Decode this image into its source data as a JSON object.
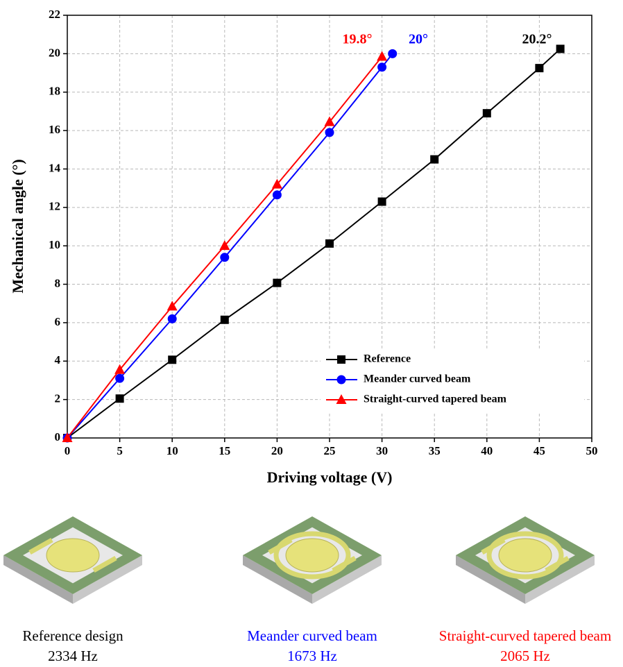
{
  "chart_data": {
    "type": "line",
    "xlabel": "Driving voltage (V)",
    "ylabel": "Mechanical angle (°)",
    "xlim": [
      0,
      50
    ],
    "xticks": [
      0,
      5,
      10,
      15,
      20,
      25,
      30,
      35,
      40,
      45,
      50
    ],
    "ylim": [
      0,
      22
    ],
    "yticks": [
      0,
      2,
      4,
      6,
      8,
      10,
      12,
      14,
      16,
      18,
      20,
      22
    ],
    "grid": true,
    "legend": "lower right",
    "series": [
      {
        "name": "Reference",
        "color": "#000000",
        "marker": "square",
        "x": [
          0,
          5,
          10,
          15,
          20,
          25,
          30,
          35,
          40,
          45,
          47
        ],
        "values": [
          0,
          2.05,
          4.07,
          6.15,
          8.07,
          10.12,
          12.3,
          14.5,
          16.9,
          19.25,
          20.25
        ]
      },
      {
        "name": "Meander curved beam",
        "color": "#0000ff",
        "marker": "circle",
        "x": [
          0,
          5,
          10,
          15,
          20,
          25,
          30,
          31
        ],
        "values": [
          0,
          3.1,
          6.2,
          9.4,
          12.65,
          15.9,
          19.3,
          20.0
        ]
      },
      {
        "name": "Straight-curved tapered beam",
        "color": "#ff0000",
        "marker": "triangle",
        "x": [
          0,
          5,
          10,
          15,
          20,
          25,
          30
        ],
        "values": [
          0,
          3.55,
          6.85,
          10.0,
          13.2,
          16.45,
          19.85
        ]
      }
    ],
    "annotations": [
      {
        "text": "19.8°",
        "color": "#ff0000"
      },
      {
        "text": "20°",
        "color": "#0000ff"
      },
      {
        "text": "20.2°",
        "color": "#000000"
      }
    ]
  },
  "panels": [
    {
      "name": "Reference design",
      "frequency": "2334 Hz",
      "color": "#000000"
    },
    {
      "name": "Meander curved beam",
      "frequency": "1673 Hz",
      "color": "#0000ff"
    },
    {
      "name": "Straight-curved tapered beam",
      "frequency": "2065 Hz",
      "color": "#ff0000"
    }
  ]
}
